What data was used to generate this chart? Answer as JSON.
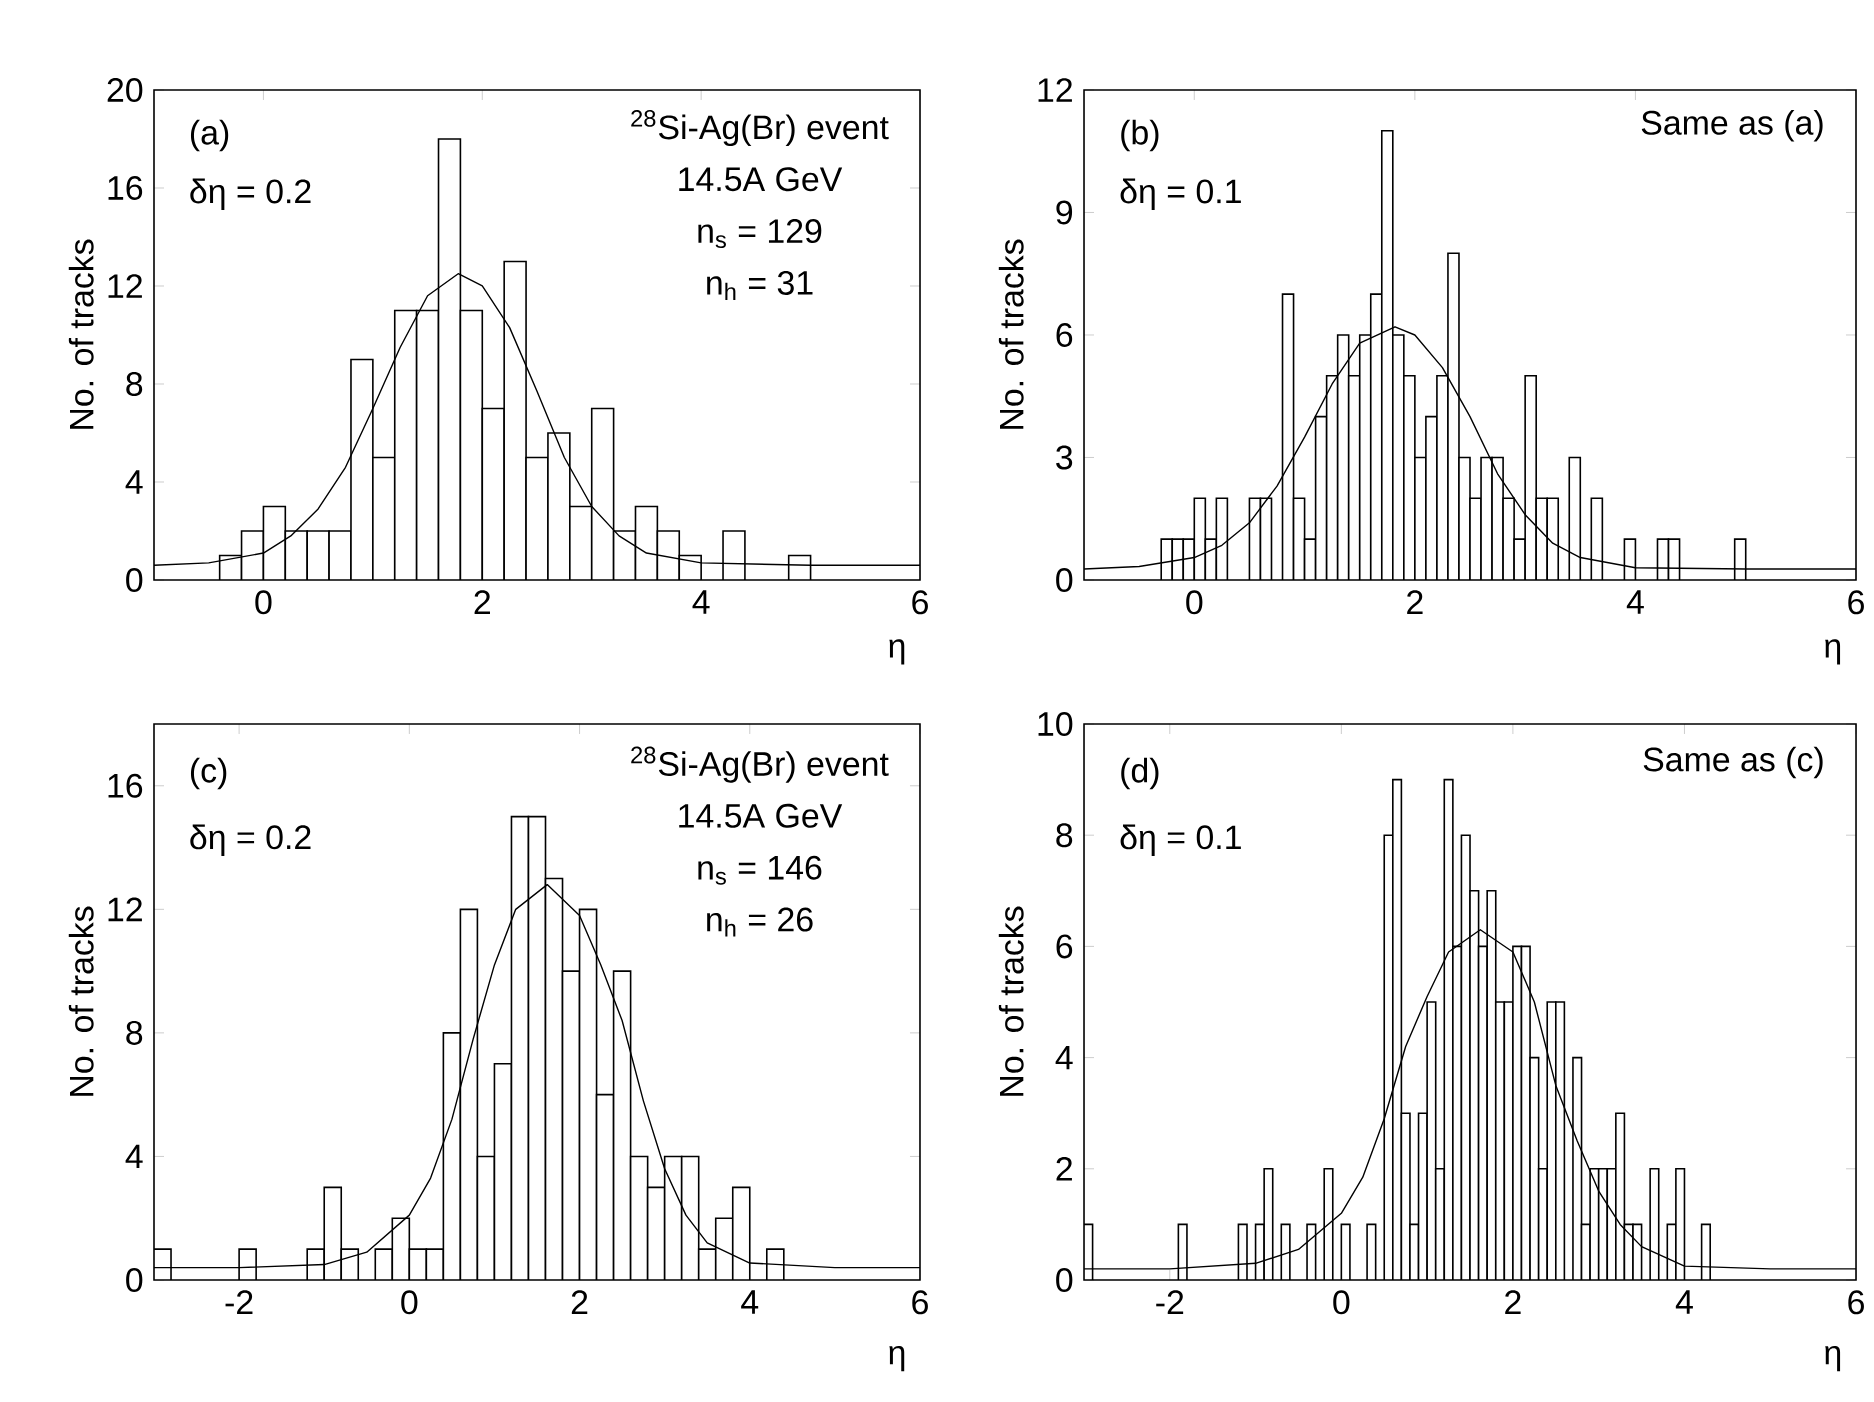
{
  "chart_data": [
    {
      "type": "histogram",
      "xlabel": "η",
      "ylabel": "No. of tracks",
      "xlim": [
        -1,
        6
      ],
      "ylim": [
        0,
        20
      ],
      "xticks": [
        0,
        2,
        4,
        6
      ],
      "yticks": [
        0,
        4,
        8,
        12,
        16,
        20
      ],
      "annotations": [
        "(a)",
        "δη = 0.2",
        "$^{28}$Si-Ag(Br) event",
        "14.5A GeV",
        "n$_{s}$ = 129",
        "n$_{h}$ = 31"
      ],
      "series": [
        {
          "type": "histogram",
          "color": "#000000",
          "bins": [
            -0.4,
            -0.2,
            0,
            0.2,
            0.4,
            0.6,
            0.8,
            1.0,
            1.2,
            1.4,
            1.6,
            1.8,
            2.0,
            2.2,
            2.4,
            2.6,
            2.8,
            3.0,
            3.2,
            3.4,
            3.6,
            3.8,
            4.0,
            4.2,
            4.4,
            4.6,
            4.8,
            5.0
          ],
          "values": [
            1,
            2,
            3,
            2,
            2,
            2,
            9,
            5,
            11,
            11,
            18,
            11,
            7,
            13,
            5,
            6,
            3,
            7,
            2,
            3,
            2,
            1,
            0,
            2,
            0,
            0,
            1
          ]
        },
        {
          "type": "line",
          "color": "#000000",
          "x": [
            -1,
            -0.5,
            0,
            0.25,
            0.5,
            0.75,
            1.0,
            1.25,
            1.5,
            1.78,
            2.0,
            2.25,
            2.5,
            2.75,
            3.0,
            3.25,
            3.5,
            4,
            5,
            6
          ],
          "values": [
            0.6,
            0.7,
            1.1,
            1.8,
            2.9,
            4.6,
            7.0,
            9.5,
            11.6,
            12.5,
            12.0,
            10.3,
            7.7,
            5.0,
            3.0,
            1.8,
            1.1,
            0.7,
            0.6,
            0.6
          ]
        }
      ]
    },
    {
      "type": "histogram",
      "xlabel": "η",
      "ylabel": "No. of tracks",
      "xlim": [
        -1,
        6
      ],
      "ylim": [
        0,
        12
      ],
      "xticks": [
        0,
        2,
        4,
        6
      ],
      "yticks": [
        0,
        3,
        6,
        9,
        12
      ],
      "annotations": [
        "(b)",
        "δη = 0.1",
        "Same as (a)"
      ],
      "series": [
        {
          "type": "histogram",
          "color": "#000000",
          "bins": [
            -0.3,
            -0.2,
            -0.1,
            0,
            0.1,
            0.2,
            0.3,
            0.4,
            0.5,
            0.6,
            0.7,
            0.8,
            0.9,
            1.0,
            1.1,
            1.2,
            1.3,
            1.4,
            1.5,
            1.6,
            1.7,
            1.8,
            1.9,
            2.0,
            2.1,
            2.2,
            2.3,
            2.4,
            2.5,
            2.6,
            2.7,
            2.8,
            2.9,
            3.0,
            3.1,
            3.2,
            3.3,
            3.4,
            3.5,
            3.6,
            3.7,
            3.8,
            3.9,
            4.0,
            4.1,
            4.2,
            4.3,
            4.4,
            4.5,
            4.6,
            4.7,
            4.8,
            4.9,
            5.0
          ],
          "values": [
            1,
            1,
            1,
            2,
            1,
            2,
            0,
            0,
            2,
            2,
            0,
            7,
            2,
            1,
            4,
            5,
            6,
            5,
            6,
            7,
            11,
            6,
            5,
            3,
            4,
            5,
            8,
            3,
            2,
            3,
            3,
            2,
            1,
            5,
            2,
            2,
            0,
            3,
            0,
            2,
            0,
            0,
            1,
            0,
            0,
            1,
            1,
            0,
            0,
            0,
            0,
            0,
            1
          ]
        },
        {
          "type": "line",
          "color": "#000000",
          "x": [
            -1,
            -0.5,
            0,
            0.25,
            0.5,
            0.75,
            1.0,
            1.25,
            1.5,
            1.82,
            2.0,
            2.25,
            2.5,
            2.75,
            3.0,
            3.25,
            3.5,
            4,
            5,
            6
          ],
          "values": [
            0.27,
            0.33,
            0.55,
            0.85,
            1.4,
            2.3,
            3.5,
            4.8,
            5.8,
            6.2,
            6.0,
            5.2,
            4.0,
            2.6,
            1.6,
            0.9,
            0.55,
            0.3,
            0.27,
            0.27
          ]
        }
      ]
    },
    {
      "type": "histogram",
      "xlabel": "η",
      "ylabel": "No. of tracks",
      "xlim": [
        -3,
        6
      ],
      "ylim": [
        0,
        18
      ],
      "xticks": [
        -2,
        0,
        2,
        4,
        6
      ],
      "yticks": [
        0,
        4,
        8,
        12,
        16
      ],
      "annotations": [
        "(c)",
        "δη = 0.2",
        "$^{28}$Si-Ag(Br) event",
        "14.5A GeV",
        "n$_{s}$ = 146",
        "n$_{h}$ = 26"
      ],
      "series": [
        {
          "type": "histogram",
          "color": "#000000",
          "bins": [
            -3.0,
            -2.8,
            -2.6,
            -2.4,
            -2.2,
            -2.0,
            -1.8,
            -1.6,
            -1.4,
            -1.2,
            -1.0,
            -0.8,
            -0.6,
            -0.4,
            -0.2,
            0,
            0.2,
            0.4,
            0.6,
            0.8,
            1.0,
            1.2,
            1.4,
            1.6,
            1.8,
            2.0,
            2.2,
            2.4,
            2.6,
            2.8,
            3.0,
            3.2,
            3.4,
            3.6,
            3.8,
            4.0,
            4.2,
            4.4
          ],
          "values": [
            1,
            0,
            0,
            0,
            0,
            1,
            0,
            0,
            0,
            1,
            3,
            1,
            0,
            1,
            2,
            1,
            1,
            8,
            12,
            4,
            7,
            15,
            15,
            13,
            10,
            12,
            6,
            10,
            4,
            3,
            4,
            4,
            1,
            2,
            3,
            0,
            1
          ]
        },
        {
          "type": "line",
          "color": "#000000",
          "x": [
            -3,
            -2,
            -1,
            -0.5,
            0,
            0.25,
            0.5,
            0.75,
            1.0,
            1.25,
            1.62,
            2.0,
            2.25,
            2.5,
            2.75,
            3.0,
            3.25,
            3.5,
            4,
            5,
            6
          ],
          "values": [
            0.4,
            0.4,
            0.5,
            0.9,
            2.1,
            3.3,
            5.2,
            7.8,
            10.2,
            12.0,
            12.8,
            11.8,
            10.2,
            8.4,
            5.8,
            3.6,
            2.1,
            1.2,
            0.55,
            0.4,
            0.4
          ]
        }
      ]
    },
    {
      "type": "histogram",
      "xlabel": "η",
      "ylabel": "No. of tracks",
      "xlim": [
        -3,
        6
      ],
      "ylim": [
        0,
        10
      ],
      "xticks": [
        -2,
        0,
        2,
        4,
        6
      ],
      "yticks": [
        0,
        2,
        4,
        6,
        8,
        10
      ],
      "annotations": [
        "(d)",
        "δη = 0.1",
        "Same as (c)"
      ],
      "series": [
        {
          "type": "histogram",
          "color": "#000000",
          "bins": [
            -3.0,
            -2.9,
            -2.8,
            -2.7,
            -2.6,
            -2.5,
            -2.4,
            -2.3,
            -2.2,
            -2.1,
            -2.0,
            -1.9,
            -1.8,
            -1.7,
            -1.6,
            -1.5,
            -1.4,
            -1.3,
            -1.2,
            -1.1,
            -1.0,
            -0.9,
            -0.8,
            -0.7,
            -0.6,
            -0.5,
            -0.4,
            -0.3,
            -0.2,
            -0.1,
            0,
            0.1,
            0.2,
            0.3,
            0.4,
            0.5,
            0.6,
            0.7,
            0.8,
            0.9,
            1.0,
            1.1,
            1.2,
            1.3,
            1.4,
            1.5,
            1.6,
            1.7,
            1.8,
            1.9,
            2.0,
            2.1,
            2.2,
            2.3,
            2.4,
            2.5,
            2.6,
            2.7,
            2.8,
            2.9,
            3.0,
            3.1,
            3.2,
            3.3,
            3.4,
            3.5,
            3.6,
            3.7,
            3.8,
            3.9,
            4.0,
            4.1,
            4.2,
            4.3
          ],
          "values": [
            1,
            0,
            0,
            0,
            0,
            0,
            0,
            0,
            0,
            0,
            0,
            1,
            0,
            0,
            0,
            0,
            0,
            0,
            1,
            0,
            1,
            2,
            0,
            1,
            0,
            0,
            1,
            0,
            2,
            0,
            1,
            0,
            0,
            1,
            0,
            8,
            9,
            3,
            1,
            3,
            5,
            2,
            9,
            6,
            8,
            7,
            6,
            7,
            5,
            5,
            6,
            6,
            4,
            2,
            5,
            5,
            0,
            4,
            1,
            2,
            2,
            2,
            3,
            1,
            1,
            0,
            2,
            0,
            1,
            2,
            0,
            0,
            1
          ]
        },
        {
          "type": "line",
          "color": "#000000",
          "x": [
            -3,
            -2,
            -1,
            -0.5,
            0,
            0.25,
            0.5,
            0.75,
            1.0,
            1.25,
            1.62,
            2.0,
            2.25,
            2.5,
            2.75,
            3.0,
            3.25,
            3.5,
            4,
            5,
            6
          ],
          "values": [
            0.2,
            0.2,
            0.3,
            0.55,
            1.2,
            1.85,
            2.9,
            4.2,
            5.1,
            5.9,
            6.3,
            5.9,
            5.0,
            3.5,
            2.5,
            1.6,
            1.0,
            0.6,
            0.25,
            0.2,
            0.2
          ]
        }
      ]
    }
  ]
}
